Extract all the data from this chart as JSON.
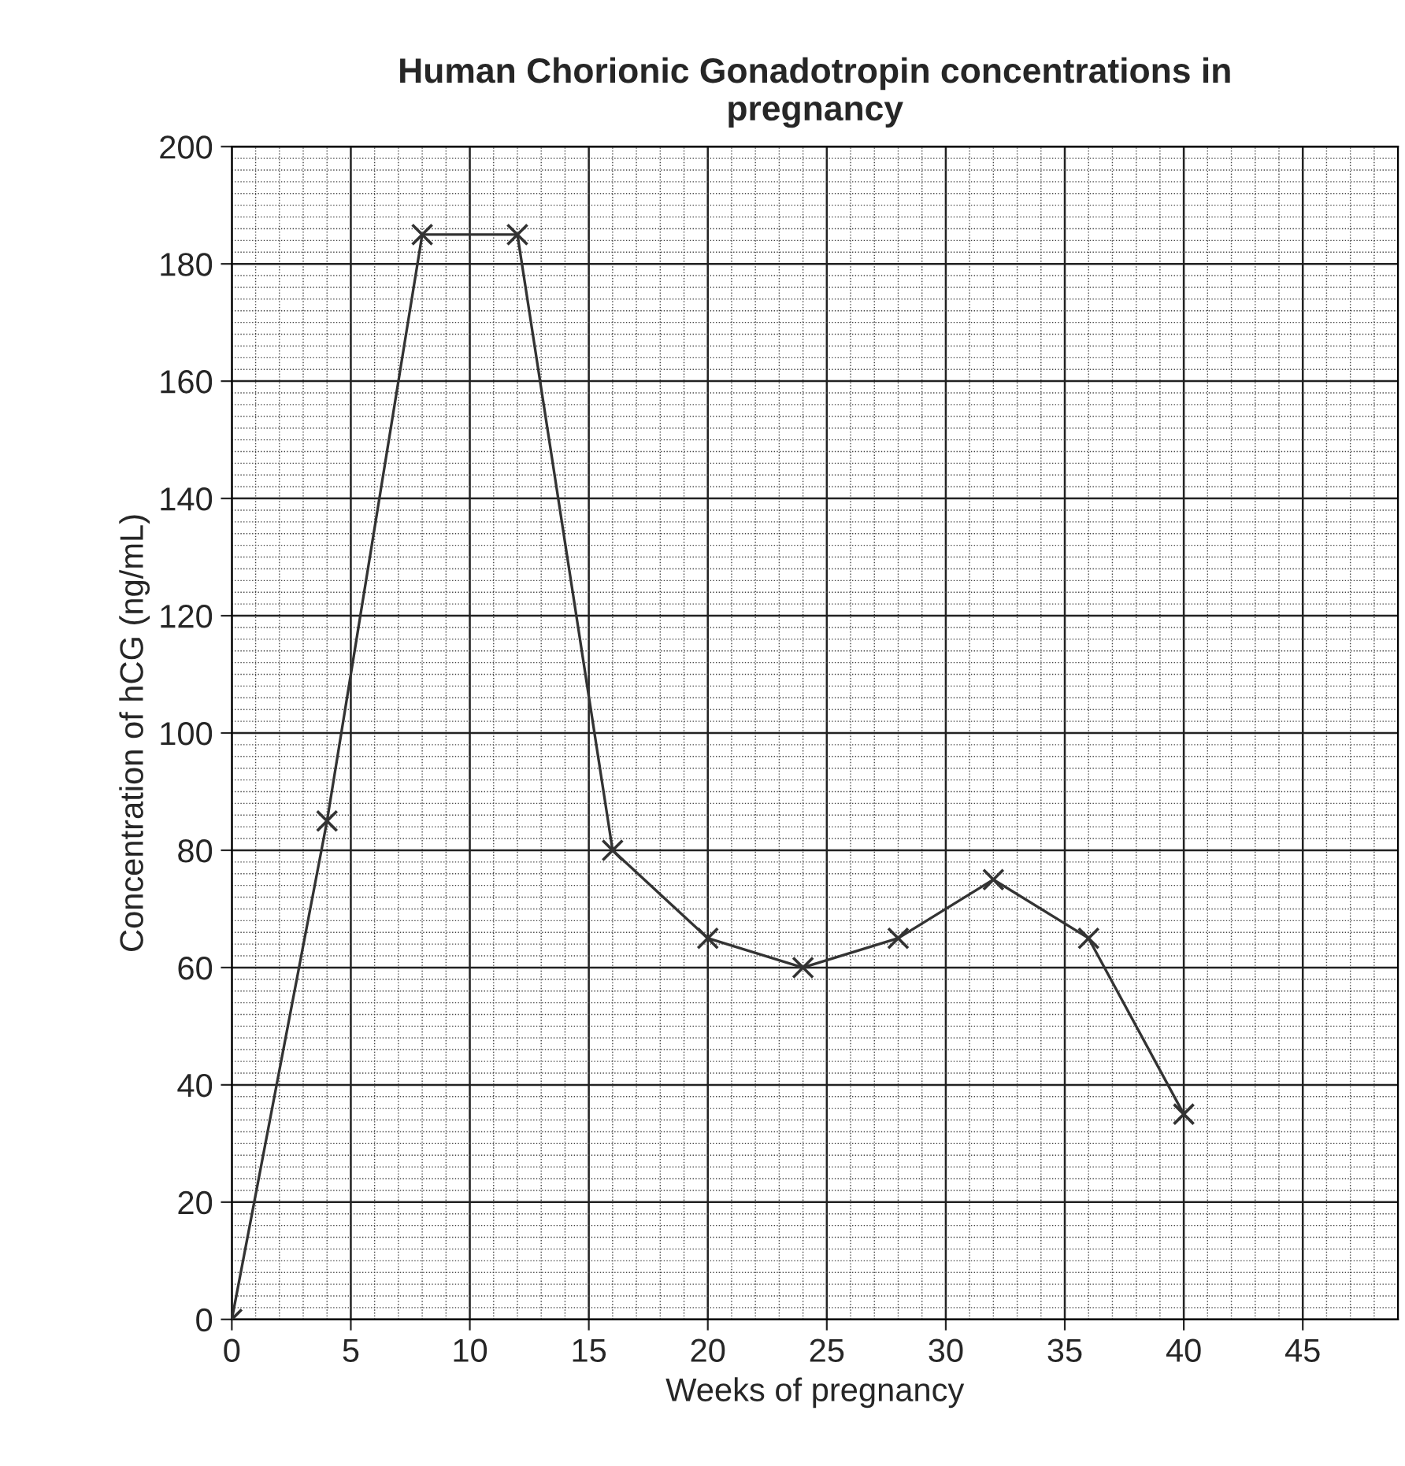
{
  "chart_data": {
    "type": "line",
    "title": "Human Chorionic Gonadotropin concentrations in\npregnancy",
    "xlabel": "Weeks of pregnancy",
    "ylabel": "Concentration of hCG (ng/mL)",
    "x": [
      0,
      4,
      8,
      12,
      16,
      20,
      24,
      28,
      32,
      36,
      40
    ],
    "series": [
      {
        "color": "#333333",
        "values": [
          0,
          85,
          185,
          185,
          80,
          65,
          60,
          65,
          75,
          65,
          35
        ]
      }
    ],
    "xlim": [
      0,
      49
    ],
    "xticks": [
      0,
      5,
      10,
      15,
      20,
      25,
      30,
      35,
      40,
      45
    ],
    "ylim": [
      0,
      200
    ],
    "yticks": [
      0,
      20,
      40,
      60,
      80,
      100,
      120,
      140,
      160,
      180,
      200
    ],
    "grid": true,
    "marker": "cross",
    "line_style": "solid",
    "legend": false
  }
}
